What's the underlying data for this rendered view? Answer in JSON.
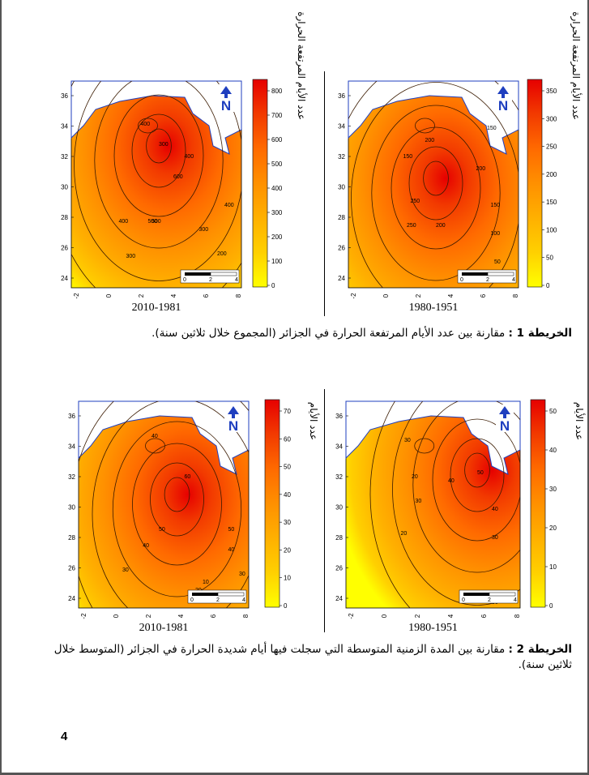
{
  "maps": [
    {
      "period": "2010-1981",
      "legend_title": "عدد الأيام المرتفعة الحرارة",
      "legend_values": [
        "800",
        "700",
        "600",
        "500",
        "400",
        "300",
        "200",
        "100",
        "0"
      ],
      "contour_labels": [
        "300",
        "400",
        "400",
        "500",
        "600",
        "400",
        "300",
        "200",
        "300",
        "400",
        "500"
      ],
      "lat_ticks": [
        "36",
        "34",
        "32",
        "30",
        "28",
        "26",
        "24"
      ],
      "lon_ticks": [
        "-2",
        "0",
        "2",
        "4",
        "6",
        "8"
      ],
      "scale_ticks": [
        "0",
        "2",
        "4"
      ],
      "north": "N"
    },
    {
      "period": "1980-1951",
      "legend_title": "عدد الأيام المرتفعة الحرارة",
      "legend_values": [
        "350",
        "300",
        "250",
        "200",
        "150",
        "100",
        "50",
        "0"
      ],
      "contour_labels": [
        "150",
        "200",
        "250",
        "200",
        "150",
        "100",
        "50",
        "250",
        "200",
        "150"
      ],
      "lat_ticks": [
        "36",
        "34",
        "32",
        "30",
        "28",
        "26",
        "24"
      ],
      "lon_ticks": [
        "-2",
        "0",
        "2",
        "4",
        "6",
        "8"
      ],
      "scale_ticks": [
        "0",
        "2",
        "4"
      ],
      "north": "N"
    },
    {
      "period": "2010-1981",
      "legend_title": "عدد الأيام",
      "legend_values": [
        "70",
        "60",
        "50",
        "40",
        "30",
        "20",
        "10",
        "0"
      ],
      "contour_labels": [
        "40",
        "60",
        "50",
        "40",
        "30",
        "20",
        "10",
        "50",
        "40",
        "30"
      ],
      "lat_ticks": [
        "36",
        "34",
        "32",
        "30",
        "28",
        "26",
        "24"
      ],
      "lon_ticks": [
        "-2",
        "0",
        "2",
        "4",
        "6",
        "8"
      ],
      "scale_ticks": [
        "0",
        "2",
        "4"
      ],
      "north": "N"
    },
    {
      "period": "1980-1951",
      "legend_title": "عدد الأيام",
      "legend_values": [
        "50",
        "40",
        "30",
        "20",
        "10",
        "0"
      ],
      "contour_labels": [
        "30",
        "20",
        "30",
        "40",
        "50",
        "40",
        "30",
        "20",
        "30"
      ],
      "lat_ticks": [
        "36",
        "34",
        "32",
        "30",
        "28",
        "26",
        "24"
      ],
      "lon_ticks": [
        "-2",
        "0",
        "2",
        "4",
        "6",
        "8"
      ],
      "scale_ticks": [
        "0",
        "2",
        "4"
      ],
      "north": "N"
    }
  ],
  "caption1": {
    "label": "الخريطة 1 :",
    "text": " مقارنة بين عدد الأيام المرتفعة الحرارة في الجزائر (المجموع خلال ثلاثين سنة)."
  },
  "caption2": {
    "label": "الخريطة 2 :",
    "text": " مقارنة بين المدة الزمنية المتوسطة التي سجلت فيها أيام شديدة الحرارة في الجزائر (المتوسط خلال ثلاثين سنة)."
  },
  "page_number": "4",
  "colors": {
    "ramp": [
      "#ffff00",
      "#ffd000",
      "#ffb000",
      "#ff9000",
      "#ff6a00",
      "#f23a00",
      "#e60000"
    ]
  }
}
